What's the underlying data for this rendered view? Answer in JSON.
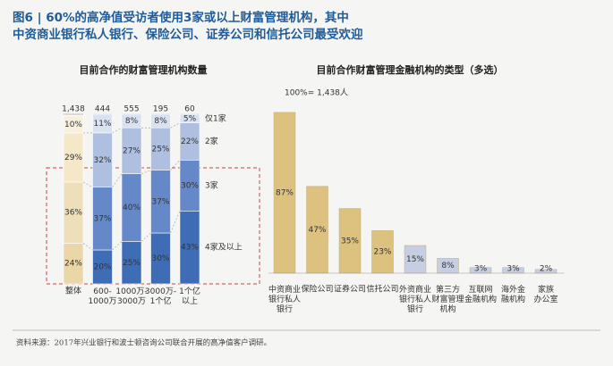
{
  "header": {
    "title": "图6 | 60%的高净值受访者使用3家或以上财富管理机构，其中中资商业银行私人银行、保险公司、证券公司和信托公司最受欢迎"
  },
  "chart_data": [
    {
      "type": "stacked-bar",
      "title": "目前合作的财富管理机构数量",
      "categories": [
        "整体",
        "600-\n1000万",
        "1000万-\n3000万",
        "3000万-\n1个亿",
        "1个亿\n以上"
      ],
      "totals": {
        "values": [
          1438,
          444,
          555,
          195,
          60
        ],
        "value_labels": [
          "1,438",
          "444",
          "555",
          "195",
          "60"
        ]
      },
      "series": [
        {
          "name": "4家及以上",
          "color": "#3f6db5",
          "highlight_color": "#ead6a6",
          "values": [
            24,
            20,
            25,
            30,
            43
          ],
          "value_labels": [
            "24%",
            "20%",
            "25%",
            "30%",
            "43%"
          ]
        },
        {
          "name": "3家",
          "color": "#6589c8",
          "highlight_color": "#efdfb8",
          "values": [
            36,
            37,
            40,
            37,
            30
          ],
          "value_labels": [
            "36%",
            "37%",
            "40%",
            "37%",
            "30%"
          ]
        },
        {
          "name": "2家",
          "color": "#aebfe0",
          "highlight_color": "#f4e8c9",
          "values": [
            29,
            32,
            27,
            25,
            22
          ],
          "value_labels": [
            "29%",
            "32%",
            "27%",
            "25%",
            "22%"
          ]
        },
        {
          "name": "仅1家",
          "color": "#d9e2f1",
          "highlight_color": "#f8f0dc",
          "values": [
            10,
            11,
            8,
            8,
            5
          ],
          "value_labels": [
            "10%",
            "11%",
            "8%",
            "8%",
            "5%"
          ]
        }
      ],
      "highlight_category": 0
    },
    {
      "type": "bar",
      "title": "目前合作财富管理金融机构的类型（多选）",
      "annotation": "100%= 1,438人",
      "categories": [
        "中资商业\n银行私人\n银行",
        "保险公司",
        "证券公司",
        "信托公司",
        "外资商业\n银行私人\n银行",
        "第三方\n财富管理\n机构",
        "互联网\n金融机构",
        "海外金\n融机构",
        "家族\n办公室"
      ],
      "values": [
        87,
        47,
        35,
        23,
        15,
        8,
        3,
        3,
        2
      ],
      "value_labels": [
        "87%",
        "47%",
        "35%",
        "23%",
        "15%",
        "8%",
        "3%",
        "3%",
        "2%"
      ],
      "colors": [
        "#dcc27e",
        "#dcc27e",
        "#dcc27e",
        "#dcc27e",
        "#c5cee2",
        "#c5cee2",
        "#c5cee2",
        "#c5cee2",
        "#c5cee2"
      ]
    }
  ],
  "footer": {
    "source": "资料来源：2017年兴业银行和波士顿咨询公司联合开展的高净值客户调研。"
  }
}
